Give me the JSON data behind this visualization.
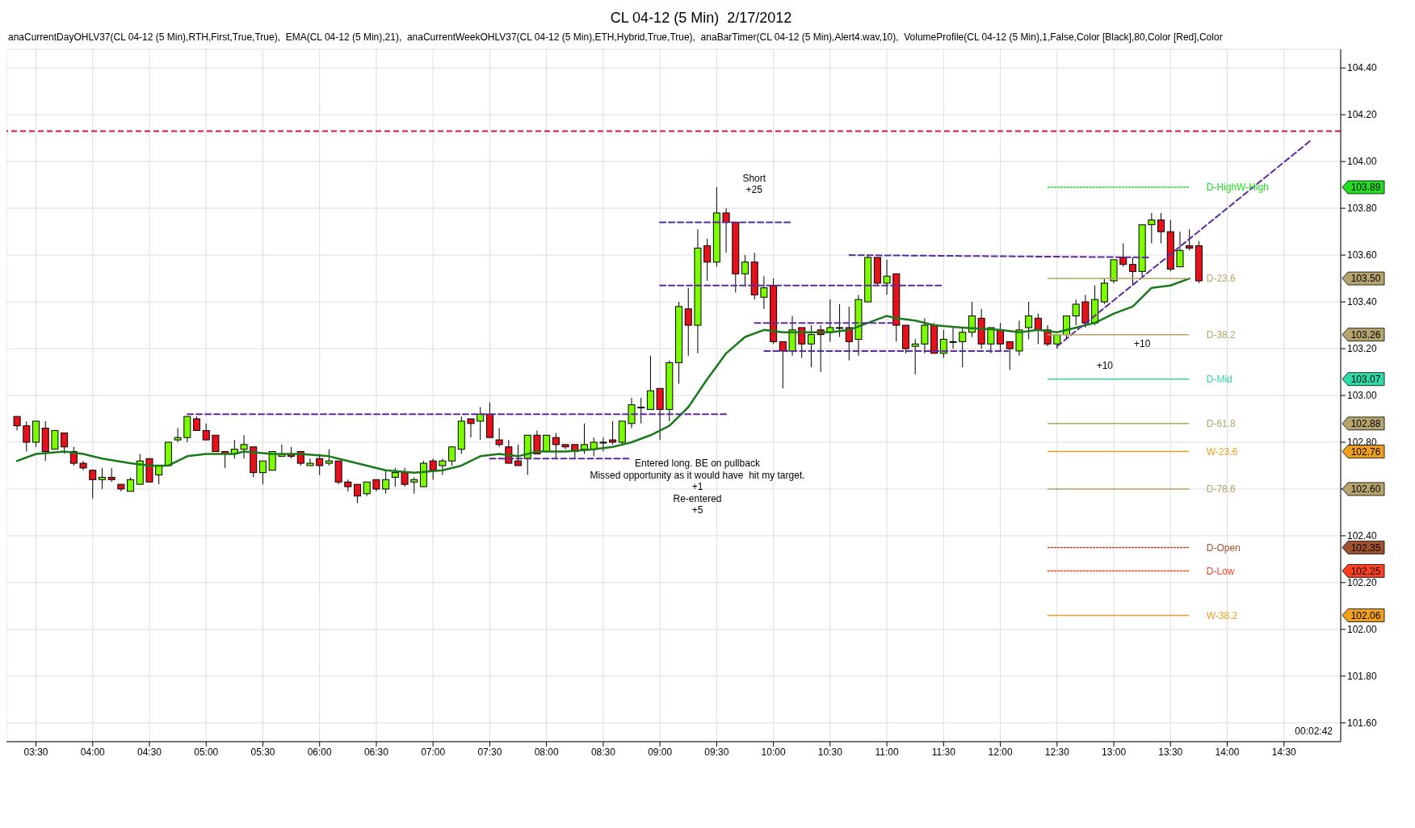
{
  "chart_data": {
    "type": "candlestick",
    "title": "CL 04-12 (5 Min)  2/17/2012",
    "subtitle": "anaCurrentDayOHLV37(CL 04-12 (5 Min),RTH,First,True,True),  EMA(CL 04-12 (5 Min),21),  anaCurrentWeekOHLV37(CL 04-12 (5 Min),ETH,Hybrid,True,True),  anaBarTimer(CL 04-12 (5 Min),Alert4.wav,10),  VolumeProfile(CL 04-12 (5 Min),1,False,Color [Black],80,Color [Red],Color",
    "x": [
      3.3333,
      3.4167,
      3.5,
      3.5833,
      3.6667,
      3.75,
      3.8333,
      3.9167,
      4,
      4.0833,
      4.1667,
      4.25,
      4.3333,
      4.4167,
      4.5,
      4.5833,
      4.6667,
      4.75,
      4.8333,
      4.9167,
      5,
      5.0833,
      5.1667,
      5.25,
      5.3333,
      5.4167,
      5.5,
      5.5833,
      5.6667,
      5.75,
      5.8333,
      5.9167,
      6,
      6.0833,
      6.1667,
      6.25,
      6.3333,
      6.4167,
      6.5,
      6.5833,
      6.6667,
      6.75,
      6.8333,
      6.9167,
      7,
      7.0833,
      7.1667,
      7.25,
      7.3333,
      7.4167,
      7.5,
      7.5833,
      7.6667,
      7.75,
      7.8333,
      7.9167,
      8,
      8.0833,
      8.1667,
      8.25,
      8.3333,
      8.4167,
      8.5,
      8.5833,
      8.6667,
      8.75,
      8.8333,
      8.9167,
      9,
      9.0833,
      9.1667,
      9.25,
      9.3333,
      9.4167,
      9.5,
      9.5833,
      9.6667,
      9.75,
      9.8333,
      9.9167,
      10,
      10.0833,
      10.1667,
      10.25,
      10.3333,
      10.4167,
      10.5,
      10.5833,
      10.6667,
      10.75,
      10.8333,
      10.9167,
      11,
      11.0833,
      11.1667,
      11.25,
      11.3333,
      11.4167,
      11.5,
      11.5833,
      11.6667,
      11.75,
      11.8333,
      11.9167,
      12,
      12.0833,
      12.1667,
      12.25,
      12.3333,
      12.4167,
      12.5,
      12.5833,
      12.6667,
      12.75,
      12.8333,
      12.9167,
      13,
      13.0833,
      13.1667,
      13.25,
      13.3333,
      13.4167,
      13.5,
      13.5833,
      13.6667,
      13.75
    ],
    "ohlc": [
      [
        102.91,
        102.91,
        102.85,
        102.87
      ],
      [
        102.87,
        102.89,
        102.76,
        102.8
      ],
      [
        102.8,
        102.89,
        102.78,
        102.89
      ],
      [
        102.86,
        102.89,
        102.72,
        102.76
      ],
      [
        102.77,
        102.85,
        102.77,
        102.85
      ],
      [
        102.84,
        102.84,
        102.75,
        102.78
      ],
      [
        102.76,
        102.78,
        102.7,
        102.71
      ],
      [
        102.71,
        102.72,
        102.68,
        102.69
      ],
      [
        102.68,
        102.68,
        102.56,
        102.64
      ],
      [
        102.64,
        102.69,
        102.6,
        102.65
      ],
      [
        102.65,
        102.69,
        102.63,
        102.64
      ],
      [
        102.62,
        102.62,
        102.59,
        102.6
      ],
      [
        102.59,
        102.65,
        102.59,
        102.64
      ],
      [
        102.62,
        102.75,
        102.62,
        102.72
      ],
      [
        102.73,
        102.73,
        102.63,
        102.63
      ],
      [
        102.66,
        102.7,
        102.62,
        102.7
      ],
      [
        102.7,
        102.8,
        102.7,
        102.8
      ],
      [
        102.81,
        102.86,
        102.8,
        102.82
      ],
      [
        102.82,
        102.91,
        102.8,
        102.91
      ],
      [
        102.9,
        102.91,
        102.85,
        102.85
      ],
      [
        102.85,
        102.88,
        102.81,
        102.81
      ],
      [
        102.83,
        102.83,
        102.76,
        102.76
      ],
      [
        102.76,
        102.76,
        102.69,
        102.75
      ],
      [
        102.75,
        102.81,
        102.73,
        102.77
      ],
      [
        102.77,
        102.83,
        102.73,
        102.79
      ],
      [
        102.78,
        102.78,
        102.65,
        102.67
      ],
      [
        102.67,
        102.72,
        102.62,
        102.72
      ],
      [
        102.68,
        102.76,
        102.68,
        102.76
      ],
      [
        102.74,
        102.79,
        102.74,
        102.75
      ],
      [
        102.75,
        102.78,
        102.73,
        102.74
      ],
      [
        102.76,
        102.76,
        102.7,
        102.71
      ],
      [
        102.7,
        102.73,
        102.7,
        102.71
      ],
      [
        102.73,
        102.75,
        102.66,
        102.7
      ],
      [
        102.71,
        102.77,
        102.7,
        102.72
      ],
      [
        102.72,
        102.72,
        102.62,
        102.63
      ],
      [
        102.63,
        102.64,
        102.59,
        102.61
      ],
      [
        102.62,
        102.62,
        102.54,
        102.57
      ],
      [
        102.58,
        102.63,
        102.57,
        102.63
      ],
      [
        102.64,
        102.64,
        102.59,
        102.6
      ],
      [
        102.6,
        102.68,
        102.58,
        102.64
      ],
      [
        102.65,
        102.69,
        102.61,
        102.67
      ],
      [
        102.67,
        102.69,
        102.61,
        102.62
      ],
      [
        102.63,
        102.65,
        102.58,
        102.64
      ],
      [
        102.61,
        102.72,
        102.61,
        102.71
      ],
      [
        102.72,
        102.73,
        102.64,
        102.68
      ],
      [
        102.7,
        102.73,
        102.66,
        102.72
      ],
      [
        102.72,
        102.78,
        102.7,
        102.78
      ],
      [
        102.77,
        102.91,
        102.75,
        102.89
      ],
      [
        102.9,
        102.9,
        102.82,
        102.88
      ],
      [
        102.89,
        102.95,
        102.81,
        102.92
      ],
      [
        102.92,
        102.97,
        102.82,
        102.82
      ],
      [
        102.81,
        102.86,
        102.78,
        102.79
      ],
      [
        102.78,
        102.81,
        102.71,
        102.71
      ],
      [
        102.72,
        102.79,
        102.7,
        102.7
      ],
      [
        102.73,
        102.83,
        102.66,
        102.83
      ],
      [
        102.83,
        102.85,
        102.75,
        102.75
      ],
      [
        102.76,
        102.83,
        102.76,
        102.83
      ],
      [
        102.82,
        102.84,
        102.73,
        102.79
      ],
      [
        102.79,
        102.79,
        102.77,
        102.78
      ],
      [
        102.79,
        102.79,
        102.73,
        102.76
      ],
      [
        102.77,
        102.88,
        102.75,
        102.79
      ],
      [
        102.77,
        102.82,
        102.74,
        102.8
      ],
      [
        102.8,
        102.82,
        102.76,
        102.8
      ],
      [
        102.81,
        102.89,
        102.79,
        102.8
      ],
      [
        102.8,
        102.89,
        102.79,
        102.89
      ],
      [
        102.88,
        102.99,
        102.86,
        102.96
      ],
      [
        102.95,
        102.99,
        102.88,
        102.95
      ],
      [
        102.94,
        103.17,
        102.94,
        103.02
      ],
      [
        103.03,
        103.03,
        102.81,
        102.94
      ],
      [
        102.94,
        103.15,
        102.89,
        103.14
      ],
      [
        103.14,
        103.4,
        103.05,
        103.38
      ],
      [
        103.37,
        103.46,
        103.17,
        103.3
      ],
      [
        103.3,
        103.71,
        103.18,
        103.63
      ],
      [
        103.64,
        103.67,
        103.49,
        103.57
      ],
      [
        103.57,
        103.89,
        103.55,
        103.78
      ],
      [
        103.78,
        103.8,
        103.61,
        103.74
      ],
      [
        103.74,
        103.74,
        103.44,
        103.52
      ],
      [
        103.52,
        103.6,
        103.47,
        103.57
      ],
      [
        103.57,
        103.61,
        103.41,
        103.43
      ],
      [
        103.42,
        103.51,
        103.37,
        103.46
      ],
      [
        103.47,
        103.5,
        103.22,
        103.23
      ],
      [
        103.23,
        103.23,
        103.03,
        103.19
      ],
      [
        103.19,
        103.34,
        103.17,
        103.28
      ],
      [
        103.29,
        103.29,
        103.16,
        103.22
      ],
      [
        103.22,
        103.3,
        103.12,
        103.26
      ],
      [
        103.28,
        103.3,
        103.1,
        103.26
      ],
      [
        103.27,
        103.41,
        103.23,
        103.29
      ],
      [
        103.29,
        103.39,
        103.25,
        103.29
      ],
      [
        103.29,
        103.38,
        103.15,
        103.23
      ],
      [
        103.24,
        103.43,
        103.17,
        103.41
      ],
      [
        103.4,
        103.6,
        103.4,
        103.59
      ],
      [
        103.59,
        103.59,
        103.47,
        103.48
      ],
      [
        103.48,
        103.58,
        103.43,
        103.51
      ],
      [
        103.52,
        103.52,
        103.23,
        103.3
      ],
      [
        103.3,
        103.3,
        103.18,
        103.2
      ],
      [
        103.21,
        103.24,
        103.09,
        103.22
      ],
      [
        103.22,
        103.33,
        103.18,
        103.3
      ],
      [
        103.3,
        103.31,
        103.18,
        103.18
      ],
      [
        103.18,
        103.28,
        103.16,
        103.24
      ],
      [
        103.23,
        103.29,
        103.2,
        103.23
      ],
      [
        103.23,
        103.29,
        103.12,
        103.27
      ],
      [
        103.27,
        103.4,
        103.25,
        103.34
      ],
      [
        103.33,
        103.37,
        103.2,
        103.22
      ],
      [
        103.22,
        103.29,
        103.18,
        103.29
      ],
      [
        103.28,
        103.31,
        103.19,
        103.22
      ],
      [
        103.23,
        103.23,
        103.11,
        103.2
      ],
      [
        103.19,
        103.32,
        103.17,
        103.28
      ],
      [
        103.29,
        103.4,
        103.24,
        103.34
      ],
      [
        103.33,
        103.35,
        103.22,
        103.28
      ],
      [
        103.28,
        103.3,
        103.21,
        103.22
      ],
      [
        103.22,
        103.26,
        103.2,
        103.26
      ],
      [
        103.26,
        103.34,
        103.24,
        103.34
      ],
      [
        103.34,
        103.41,
        103.3,
        103.39
      ],
      [
        103.4,
        103.43,
        103.29,
        103.31
      ],
      [
        103.31,
        103.47,
        103.3,
        103.41
      ],
      [
        103.4,
        103.5,
        103.39,
        103.48
      ],
      [
        103.49,
        103.58,
        103.48,
        103.58
      ],
      [
        103.59,
        103.65,
        103.55,
        103.56
      ],
      [
        103.56,
        103.59,
        103.47,
        103.53
      ],
      [
        103.53,
        103.73,
        103.51,
        103.73
      ],
      [
        103.73,
        103.78,
        103.65,
        103.75
      ],
      [
        103.75,
        103.78,
        103.65,
        103.7
      ],
      [
        103.7,
        103.75,
        103.53,
        103.54
      ],
      [
        103.55,
        103.7,
        103.55,
        103.62
      ],
      [
        103.64,
        103.71,
        103.62,
        103.63
      ],
      [
        103.64,
        103.66,
        103.48,
        103.49
      ]
    ],
    "series": [
      {
        "type": "line",
        "color": "#1a7a1a",
        "x": [
          3.3333,
          3.5,
          3.75,
          3.9167,
          4.0833,
          4.3333,
          4.5,
          4.6667,
          4.8333,
          5,
          5.25,
          5.3333,
          5.5833,
          5.8333,
          6.0833,
          6.25,
          6.4167,
          6.5833,
          6.8333,
          7.0833,
          7.25,
          7.4167,
          7.5833,
          7.75,
          7.9167,
          8.1667,
          8.4167,
          8.5833,
          8.75,
          8.9167,
          9.0833,
          9.25,
          9.4167,
          9.5833,
          9.75,
          9.9167,
          10.0833,
          10.25,
          10.5,
          10.6667,
          10.8333,
          11,
          11.0833,
          11.25,
          11.4167,
          11.6667,
          12,
          12.1667,
          12.3333,
          12.5,
          12.6667,
          12.8333,
          13,
          13.1667,
          13.3333,
          13.5,
          13.6667
        ],
        "values": [
          102.72,
          102.75,
          102.76,
          102.75,
          102.73,
          102.71,
          102.7,
          102.7,
          102.74,
          102.75,
          102.75,
          102.76,
          102.75,
          102.75,
          102.74,
          102.72,
          102.7,
          102.68,
          102.67,
          102.68,
          102.7,
          102.74,
          102.75,
          102.74,
          102.76,
          102.76,
          102.77,
          102.78,
          102.8,
          102.83,
          102.87,
          102.95,
          103.07,
          103.18,
          103.25,
          103.28,
          103.27,
          103.27,
          103.27,
          103.28,
          103.31,
          103.34,
          103.33,
          103.32,
          103.3,
          103.29,
          103.28,
          103.27,
          103.28,
          103.27,
          103.29,
          103.31,
          103.35,
          103.38,
          103.46,
          103.47,
          103.5
        ]
      },
      {
        "type": "line",
        "color": "#5b2c9e",
        "line_style": "dashed",
        "x": [
          4.835,
          9.585
        ],
        "values": [
          102.92,
          102.92
        ]
      },
      {
        "type": "line",
        "color": "#5b2c9e",
        "line_style": "dashed",
        "x": [
          7.5,
          8.75
        ],
        "values": [
          102.73,
          102.73
        ]
      },
      {
        "type": "line",
        "color": "#5b2c9e",
        "line_style": "dashed",
        "x": [
          9.0,
          10.155
        ],
        "values": [
          103.74,
          103.74
        ]
      },
      {
        "type": "line",
        "color": "#5b2c9e",
        "line_style": "dashed",
        "x": [
          9.0,
          11.49
        ],
        "values": [
          103.47,
          103.47
        ]
      },
      {
        "type": "line",
        "color": "#5b2c9e",
        "line_style": "dashed",
        "x": [
          9.835,
          11.05
        ],
        "values": [
          103.31,
          103.31
        ]
      },
      {
        "type": "line",
        "color": "#5b2c9e",
        "line_style": "dashed",
        "x": [
          9.92,
          12.07
        ],
        "values": [
          103.19,
          103.19
        ]
      },
      {
        "type": "line",
        "color": "#5b2c9e",
        "line_style": "dashed",
        "x": [
          10.67,
          13.32
        ],
        "values": [
          103.6,
          103.59
        ]
      },
      {
        "type": "line",
        "color": "#5b2c9e",
        "line_style": "dashed",
        "x": [
          12.5,
          14.736
        ],
        "values": [
          103.21,
          104.09
        ]
      },
      {
        "type": "line",
        "name": "D-HighW-High",
        "color": "#22dd22",
        "line_style": "dotted",
        "x": [
          12.42,
          13.66
        ],
        "values": [
          103.89,
          103.89
        ]
      },
      {
        "type": "line",
        "name": "D-23.6",
        "color": "#b5a46c",
        "x": [
          12.42,
          13.66
        ],
        "values": [
          103.5,
          103.5
        ]
      },
      {
        "type": "line",
        "name": "D-38.2",
        "color": "#b5a46c",
        "x": [
          12.42,
          13.66
        ],
        "values": [
          103.26,
          103.26
        ]
      },
      {
        "type": "line",
        "name": "D-Mid",
        "color": "#2fd9a8",
        "x": [
          12.42,
          13.66
        ],
        "values": [
          103.07,
          103.07
        ]
      },
      {
        "type": "line",
        "name": "D-61.8",
        "color": "#b5a46c",
        "x": [
          12.42,
          13.66
        ],
        "values": [
          102.88,
          102.88
        ]
      },
      {
        "type": "line",
        "name": "W-23.6",
        "color": "#f0a020",
        "x": [
          12.42,
          13.66
        ],
        "values": [
          102.76,
          102.76
        ]
      },
      {
        "type": "line",
        "name": "D-78.6",
        "color": "#b5a46c",
        "x": [
          12.42,
          13.66
        ],
        "values": [
          102.6,
          102.6
        ]
      },
      {
        "type": "line",
        "name": "D-Open",
        "color": "#a0522d",
        "line_style": "dotted",
        "x": [
          12.42,
          13.66
        ],
        "values": [
          102.35,
          102.35
        ]
      },
      {
        "type": "line",
        "name": "D-Low",
        "color": "#ff4020",
        "line_style": "dotted",
        "x": [
          12.42,
          13.66
        ],
        "values": [
          102.25,
          102.25
        ]
      },
      {
        "type": "line",
        "name": "W-38.2",
        "color": "#f0a020",
        "x": [
          12.42,
          13.66
        ],
        "values": [
          102.06,
          102.06
        ]
      }
    ],
    "ref_lines": [
      {
        "axis": "y",
        "value": 104.13,
        "color": "#d4163c",
        "line_style": "dashed"
      }
    ],
    "annotations": [
      "Short",
      "+25",
      "Entered long. BE on pullback",
      "Missed opportunity as it would have  hit my target.",
      "+1",
      "Re-entered",
      "+5",
      "+10",
      "+10",
      "00:02:42",
      "103.89",
      "103.50",
      "103.26",
      "103.07",
      "102.88",
      "102.76",
      "102.60",
      "102.35",
      "102.25",
      "102.06"
    ],
    "xlim": [
      3.24,
      15.0
    ],
    "xticks": [
      {
        "value": 3.5,
        "label": "03:30"
      },
      {
        "value": 4,
        "label": "04:00"
      },
      {
        "value": 4.5,
        "label": "04:30"
      },
      {
        "value": 5,
        "label": "05:00"
      },
      {
        "value": 5.5,
        "label": "05:30"
      },
      {
        "value": 6,
        "label": "06:00"
      },
      {
        "value": 6.5,
        "label": "06:30"
      },
      {
        "value": 7,
        "label": "07:00"
      },
      {
        "value": 7.5,
        "label": "07:30"
      },
      {
        "value": 8,
        "label": "08:00"
      },
      {
        "value": 8.5,
        "label": "08:30"
      },
      {
        "value": 9,
        "label": "09:00"
      },
      {
        "value": 9.5,
        "label": "09:30"
      },
      {
        "value": 10,
        "label": "10:00"
      },
      {
        "value": 10.5,
        "label": "10:30"
      },
      {
        "value": 11,
        "label": "11:00"
      },
      {
        "value": 11.5,
        "label": "11:30"
      },
      {
        "value": 12,
        "label": "12:00"
      },
      {
        "value": 12.5,
        "label": "12:30"
      },
      {
        "value": 13,
        "label": "13:00"
      },
      {
        "value": 13.5,
        "label": "13:30"
      },
      {
        "value": 14,
        "label": "14:00"
      },
      {
        "value": 14.5,
        "label": "14:30"
      }
    ],
    "ylim": [
      101.52,
      104.48
    ],
    "yticks": [
      {
        "value": 101.6,
        "label": "101.60"
      },
      {
        "value": 101.8,
        "label": "101.80"
      },
      {
        "value": 102,
        "label": "102.00"
      },
      {
        "value": 102.2,
        "label": "102.20"
      },
      {
        "value": 102.4,
        "label": "102.40"
      },
      {
        "value": 102.6,
        "label": null
      },
      {
        "value": 102.8,
        "label": "102.80"
      },
      {
        "value": 103,
        "label": "103.00"
      },
      {
        "value": 103.2,
        "label": "103.20"
      },
      {
        "value": 103.4,
        "label": "103.40"
      },
      {
        "value": 103.6,
        "label": "103.60"
      },
      {
        "value": 103.8,
        "label": "103.80"
      },
      {
        "value": 104,
        "label": "104.00"
      },
      {
        "value": 104.2,
        "label": "104.20"
      },
      {
        "value": 104.4,
        "label": "104.40"
      }
    ],
    "grid": true
  }
}
